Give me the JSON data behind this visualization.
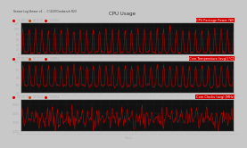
{
  "title": "CPU Usage",
  "window_title": "Sensor Log Viewer v1  -  C:\\123\\Cinebench R23",
  "panel1_label": "CPU Package Power (W)",
  "panel2_label": "Core Temperature (avg) [°C]",
  "panel3_label": "Core Clocks (avg) [MHz]",
  "line_color": "#cc0000",
  "plot_bg": "#111111",
  "panel_bg": "#1e1e1e",
  "outer_bg": "#c8c8c8",
  "titlebar_bg": "#e8e8e8",
  "header_bg": "#2a2a2a",
  "text_color": "#aaaaaa",
  "label_bg": "#cc0000",
  "legend_color1": "#cc0000",
  "legend_color2": "#cc4400",
  "legend_color3": "#cc0000",
  "n_points": 300,
  "seed": 42,
  "panel1_ylim": [
    0,
    120
  ],
  "panel1_yticks": [
    0,
    20,
    40,
    60,
    80,
    100,
    120
  ],
  "panel2_ylim": [
    40,
    100
  ],
  "panel2_yticks": [
    40,
    55,
    70,
    85,
    100
  ],
  "panel3_ylim": [
    2000,
    5500
  ],
  "panel3_yticks": [
    2000,
    3000,
    4000,
    5000
  ]
}
